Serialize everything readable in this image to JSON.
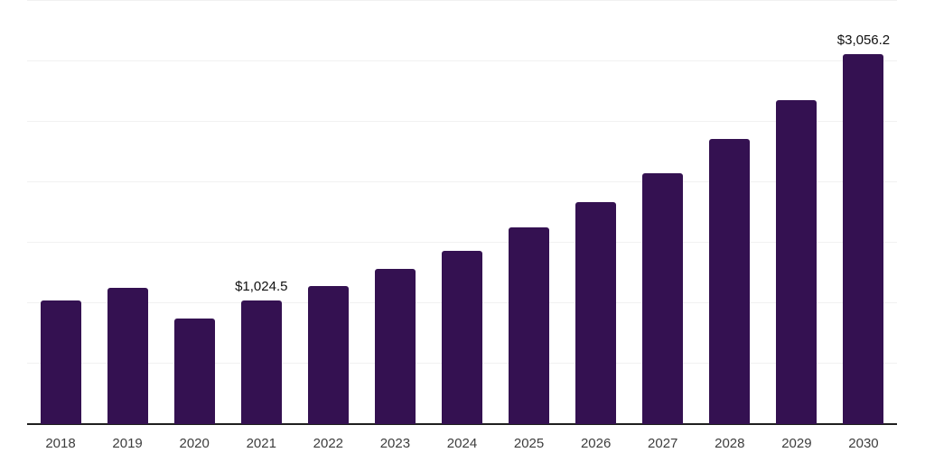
{
  "chart_data": {
    "type": "bar",
    "title": "",
    "xlabel": "",
    "ylabel": "",
    "categories": [
      "2018",
      "2019",
      "2020",
      "2021",
      "2022",
      "2023",
      "2024",
      "2025",
      "2026",
      "2027",
      "2028",
      "2029",
      "2030"
    ],
    "values": [
      1020,
      1130,
      870,
      1024.5,
      1145,
      1285,
      1435,
      1625,
      1835,
      2075,
      2355,
      2680,
      3056.2
    ],
    "value_labels": [
      "",
      "",
      "",
      "$1,024.5",
      "",
      "",
      "",
      "",
      "",
      "",
      "",
      "",
      "$3,056.2"
    ],
    "ylim": [
      0,
      3500
    ],
    "gridline_step": 500,
    "grid": true,
    "legend": false,
    "colors": {
      "bar": "#341151",
      "gridline": "#f1f1f1",
      "axis_line": "#1f1f1f",
      "tick_label": "#3d3d3d",
      "value_label": "#111111",
      "background": "#ffffff"
    }
  }
}
